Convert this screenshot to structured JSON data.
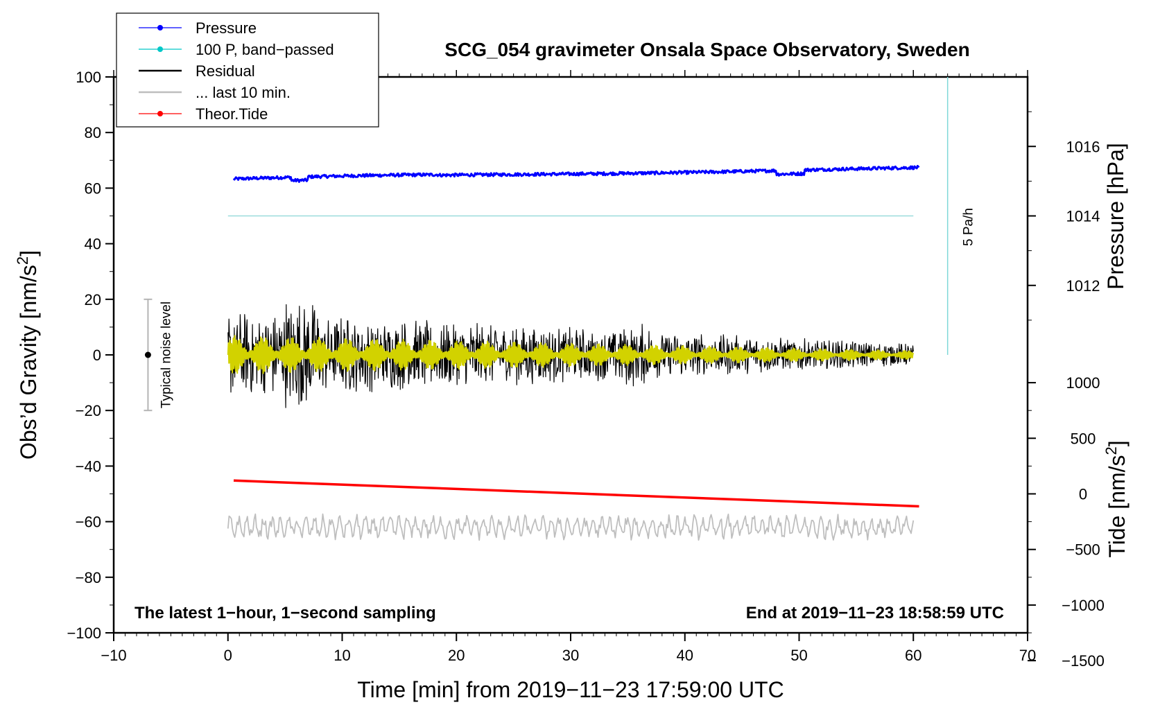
{
  "chart_data": {
    "type": "line",
    "title": "SCG_054 gravimeter Onsala Space Observatory, Sweden",
    "xlabel": "Time [min] from 2019−11−23 17:59:00 UTC",
    "ylabel_left_prefix": "Obs’d Gravity [nm/s",
    "ylabel_left_sup": "2",
    "ylabel_left_suffix": "]",
    "ylabel_right_pressure": "Pressure [hPa]",
    "ylabel_right_tide_prefix": "Tide [nm/s",
    "ylabel_right_tide_sup": "2",
    "ylabel_right_tide_suffix": "]",
    "xlim": [
      -10,
      70
    ],
    "ylim": [
      -100,
      100
    ],
    "x_ticks": [
      -10,
      0,
      10,
      20,
      30,
      40,
      50,
      60,
      70
    ],
    "x_tick_labels": [
      "−10",
      "0",
      "10",
      "20",
      "30",
      "40",
      "50",
      "60",
      "70"
    ],
    "y_ticks": [
      -100,
      -80,
      -60,
      -40,
      -20,
      0,
      20,
      40,
      60,
      80,
      100
    ],
    "y_tick_labels": [
      "−100",
      "−80",
      "−60",
      "−40",
      "−20",
      "0",
      "20",
      "40",
      "60",
      "80",
      "100"
    ],
    "pressure_axis": {
      "ticks": [
        1012,
        1014,
        1016
      ],
      "tick_labels": [
        "1012",
        "1014",
        "1016"
      ],
      "gravity_at_1014": 50,
      "gravity_per_hPa": 12.5
    },
    "tide_axis": {
      "ticks": [
        -1500,
        -1000,
        -500,
        0,
        500,
        1000
      ],
      "tick_labels": [
        "−1500",
        "−1000",
        "−500",
        "0",
        "500",
        "1000"
      ],
      "gravity_at_0": -50,
      "gravity_per_unit": 0.04
    },
    "legend": [
      {
        "label": "Pressure",
        "color": "#0000ff",
        "marker": true
      },
      {
        "label": "100 P, band−passed",
        "color": "#00c8c8",
        "marker": true
      },
      {
        "label": "Residual",
        "color": "#000000",
        "marker": false
      },
      {
        "label": "... last 10 min.",
        "color": "#bebebe",
        "marker": false
      },
      {
        "label": "Theor.Tide",
        "color": "#ff0000",
        "marker": true
      }
    ],
    "series": [
      {
        "name": "Pressure",
        "color": "#0000ff",
        "x_range": [
          0.5,
          60.5
        ],
        "y_start": 63.3,
        "y_end": 67.2,
        "noise": 0.7
      },
      {
        "name": "100 P, band−passed",
        "color": "#9adcdc",
        "x_range": [
          0,
          60
        ],
        "y_start": 50,
        "y_end": 50
      },
      {
        "name": "Residual",
        "color": "#000000",
        "x_range": [
          0,
          60
        ],
        "amplitude_start": 16,
        "amplitude_end": 4
      },
      {
        "name": "Residual, low-passed",
        "color": "#d2d200",
        "x_range": [
          0,
          60
        ],
        "amplitude_start": 7,
        "amplitude_end": 1.5
      },
      {
        "name": "... last 10 min.",
        "color": "#bebebe",
        "x_range": [
          0,
          60
        ],
        "y_center": -62,
        "amplitude": 4
      },
      {
        "name": "Theor.Tide",
        "color": "#ff0000",
        "x_range": [
          0.5,
          60.5
        ],
        "y_start": -45.2,
        "y_end": -54.5
      }
    ],
    "rate_bar": {
      "label": "5 Pa/h",
      "x": 63,
      "y_from": 0,
      "y_to": 100
    },
    "noise_bar": {
      "label": "Typical noise level",
      "x": -7,
      "y_center": 0,
      "y_low": -20,
      "y_high": 20
    },
    "note_left": "The latest 1−hour, 1−second sampling",
    "note_right": "End at 2019−11−23 18:58:59 UTC"
  }
}
